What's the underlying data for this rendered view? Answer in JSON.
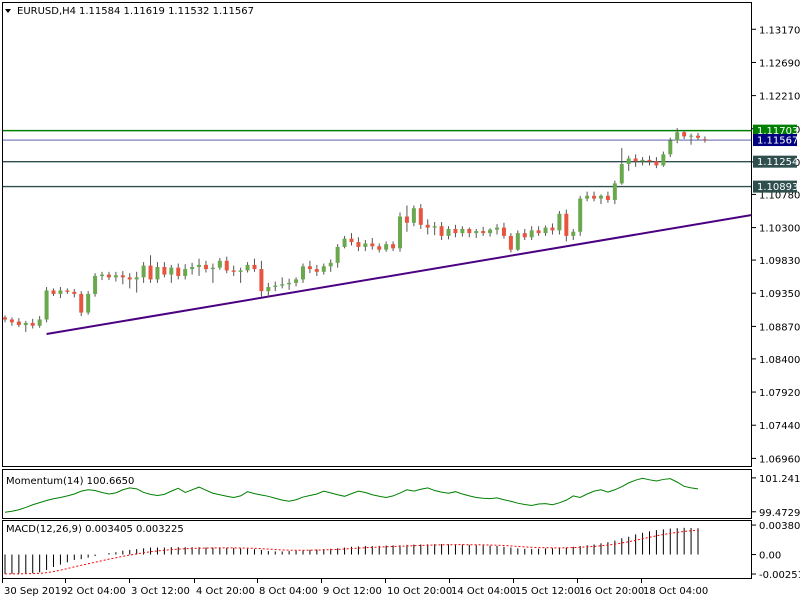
{
  "header": {
    "symbol": "EURUSD,H4",
    "ohlc": "1.11584 1.11619 1.11532 1.11567"
  },
  "chart_data": [
    {
      "type": "candlestick",
      "name": "EURUSD,H4",
      "y_ticks": [
        "1.13170",
        "1.12690",
        "1.12210",
        "1.11730",
        "1.11250",
        "1.10780",
        "1.10300",
        "1.09830",
        "1.09350",
        "1.08870",
        "1.08400",
        "1.07920",
        "1.07440",
        "1.06960"
      ],
      "ylim": [
        1.0685,
        1.1355
      ],
      "x_ticks": [
        "30 Sep 2019",
        "2 Oct 04:00",
        "3 Oct 12:00",
        "4 Oct 20:00",
        "8 Oct 04:00",
        "9 Oct 12:00",
        "10 Oct 20:00",
        "14 Oct 04:00",
        "15 Oct 12:00",
        "16 Oct 20:00",
        "18 Oct 04:00"
      ],
      "candles": [
        [
          1.09,
          1.0903,
          1.0893,
          1.0897
        ],
        [
          1.0897,
          1.09,
          1.0888,
          1.0893
        ],
        [
          1.0894,
          1.0899,
          1.0886,
          1.0889
        ],
        [
          1.0889,
          1.0895,
          1.0879,
          1.0892
        ],
        [
          1.0892,
          1.0898,
          1.0884,
          1.0888
        ],
        [
          1.0888,
          1.0902,
          1.0885,
          1.0897
        ],
        [
          1.0897,
          1.0944,
          1.0893,
          1.0939
        ],
        [
          1.0939,
          1.0942,
          1.0931,
          1.0934
        ],
        [
          1.0934,
          1.0944,
          1.0928,
          1.0939
        ],
        [
          1.0939,
          1.0942,
          1.0934,
          1.0937
        ],
        [
          1.0937,
          1.0941,
          1.0929,
          1.0934
        ],
        [
          1.0934,
          1.0938,
          1.0902,
          1.0907
        ],
        [
          1.0907,
          1.0938,
          1.0904,
          1.0934
        ],
        [
          1.0934,
          1.0964,
          1.093,
          1.096
        ],
        [
          1.096,
          1.0966,
          1.0954,
          1.0962
        ],
        [
          1.0962,
          1.0966,
          1.0954,
          1.0958
        ],
        [
          1.0958,
          1.0966,
          1.0952,
          1.0961
        ],
        [
          1.0961,
          1.0967,
          1.0948,
          1.0958
        ],
        [
          1.0958,
          1.0964,
          1.0942,
          1.0955
        ],
        [
          1.0955,
          1.0966,
          1.0936,
          1.0958
        ],
        [
          1.0958,
          1.098,
          1.095,
          1.0975
        ],
        [
          1.0975,
          1.099,
          1.095,
          1.0955
        ],
        [
          1.0955,
          1.098,
          1.095,
          1.0973
        ],
        [
          1.0973,
          1.098,
          1.0958,
          1.0962
        ],
        [
          1.0962,
          1.0976,
          1.095,
          1.0972
        ],
        [
          1.0972,
          1.0978,
          1.0955,
          1.096
        ],
        [
          1.096,
          1.0977,
          1.0955,
          1.097
        ],
        [
          1.097,
          1.0979,
          1.0962,
          1.0973
        ],
        [
          1.0973,
          1.0985,
          1.096,
          1.0976
        ],
        [
          1.0976,
          1.0982,
          1.0965,
          1.097
        ],
        [
          1.097,
          1.0978,
          1.095,
          1.0972
        ],
        [
          1.0972,
          1.0986,
          1.0969,
          1.0982
        ],
        [
          1.0982,
          1.0988,
          1.0964,
          1.0968
        ],
        [
          1.0968,
          1.0975,
          1.096,
          1.0966
        ],
        [
          1.0966,
          1.0972,
          1.095,
          1.0968
        ],
        [
          1.0968,
          1.098,
          1.0965,
          1.0976
        ],
        [
          1.0976,
          1.0985,
          1.0966,
          1.097
        ],
        [
          1.097,
          1.0982,
          1.093,
          1.0938
        ],
        [
          1.0938,
          1.095,
          1.093,
          1.0944
        ],
        [
          1.0944,
          1.0952,
          1.0938,
          1.0946
        ],
        [
          1.0946,
          1.0958,
          1.0942,
          1.0948
        ],
        [
          1.0948,
          1.0956,
          1.094,
          1.095
        ],
        [
          1.095,
          1.0958,
          1.0945,
          1.0955
        ],
        [
          1.0955,
          1.0978,
          1.095,
          1.0974
        ],
        [
          1.0974,
          1.0982,
          1.0964,
          1.097
        ],
        [
          1.097,
          1.0976,
          1.096,
          1.0966
        ],
        [
          1.0966,
          1.0978,
          1.0962,
          1.0974
        ],
        [
          1.0974,
          1.0984,
          1.0966,
          1.0979
        ],
        [
          1.0979,
          1.1006,
          1.0972,
          1.1002
        ],
        [
          1.1002,
          1.1018,
          1.1,
          1.1014
        ],
        [
          1.1014,
          1.1022,
          1.1004,
          1.1009
        ],
        [
          1.1009,
          1.1016,
          1.0996,
          1.1002
        ],
        [
          1.1002,
          1.1012,
          1.0996,
          1.1007
        ],
        [
          1.1007,
          1.1015,
          1.0998,
          1.1003
        ],
        [
          1.1003,
          1.1007,
          1.0994,
          1.0998
        ],
        [
          1.0998,
          1.101,
          1.0995,
          1.1006
        ],
        [
          1.1006,
          1.101,
          1.0996,
          1.1
        ],
        [
          1.1,
          1.1052,
          1.0995,
          1.1046
        ],
        [
          1.1046,
          1.1062,
          1.1024,
          1.1037
        ],
        [
          1.1037,
          1.1062,
          1.1032,
          1.1058
        ],
        [
          1.1058,
          1.1064,
          1.1028,
          1.1034
        ],
        [
          1.1034,
          1.1042,
          1.102,
          1.103
        ],
        [
          1.103,
          1.1038,
          1.1019,
          1.1032
        ],
        [
          1.1032,
          1.1038,
          1.1012,
          1.1018
        ],
        [
          1.1018,
          1.1032,
          1.1013,
          1.1028
        ],
        [
          1.1028,
          1.1034,
          1.1016,
          1.1022
        ],
        [
          1.1022,
          1.1032,
          1.1017,
          1.1028
        ],
        [
          1.1028,
          1.103,
          1.1016,
          1.1022
        ],
        [
          1.1022,
          1.1028,
          1.1015,
          1.1025
        ],
        [
          1.1025,
          1.1031,
          1.1018,
          1.1022
        ],
        [
          1.1022,
          1.1029,
          1.1017,
          1.1027
        ],
        [
          1.1027,
          1.1035,
          1.102,
          1.103
        ],
        [
          1.103,
          1.1037,
          1.1014,
          1.1018
        ],
        [
          1.1018,
          1.1022,
          1.0994,
          1.0998
        ],
        [
          1.0998,
          1.1026,
          1.0996,
          1.1022
        ],
        [
          1.1022,
          1.1028,
          1.1012,
          1.1016
        ],
        [
          1.1016,
          1.1032,
          1.1012,
          1.1026
        ],
        [
          1.1026,
          1.1032,
          1.1018,
          1.1022
        ],
        [
          1.1022,
          1.1033,
          1.1018,
          1.103
        ],
        [
          1.103,
          1.1036,
          1.102,
          1.1026
        ],
        [
          1.1026,
          1.1054,
          1.102,
          1.105
        ],
        [
          1.105,
          1.1056,
          1.101,
          1.1018
        ],
        [
          1.1018,
          1.1028,
          1.1012,
          1.1024
        ],
        [
          1.1024,
          1.1076,
          1.1018,
          1.1072
        ],
        [
          1.1072,
          1.1082,
          1.1068,
          1.1076
        ],
        [
          1.1076,
          1.1082,
          1.1068,
          1.1072
        ],
        [
          1.1072,
          1.1078,
          1.1064,
          1.1076
        ],
        [
          1.1076,
          1.1082,
          1.1066,
          1.107
        ],
        [
          1.107,
          1.1098,
          1.1064,
          1.1094
        ],
        [
          1.1094,
          1.1145,
          1.1092,
          1.1122
        ],
        [
          1.1122,
          1.1134,
          1.1112,
          1.113
        ],
        [
          1.113,
          1.1136,
          1.1118,
          1.1126
        ],
        [
          1.1126,
          1.1132,
          1.112,
          1.1128
        ],
        [
          1.1128,
          1.1134,
          1.112,
          1.1126
        ],
        [
          1.1126,
          1.1132,
          1.1116,
          1.112
        ],
        [
          1.112,
          1.114,
          1.1118,
          1.1136
        ],
        [
          1.1136,
          1.116,
          1.1132,
          1.1156
        ],
        [
          1.1156,
          1.1174,
          1.1152,
          1.1168
        ],
        [
          1.1168,
          1.1171,
          1.1158,
          1.1162
        ],
        [
          1.1162,
          1.1166,
          1.115,
          1.1163
        ],
        [
          1.1163,
          1.1167,
          1.1156,
          1.116
        ],
        [
          1.1158,
          1.1162,
          1.1153,
          1.1157
        ]
      ],
      "horizontal_levels": [
        {
          "price": 1.11703,
          "label": "1.11703",
          "color": "#008000"
        },
        {
          "price": 1.11567,
          "label": "1.11567",
          "color": "#000080"
        },
        {
          "price": 1.11254,
          "label": "1.11254",
          "color": "#2f4f4f"
        },
        {
          "price": 1.10893,
          "label": "1.10893",
          "color": "#2f4f4f"
        }
      ],
      "trendline": {
        "from": {
          "candle": 6,
          "price": 1.0876
        },
        "to": {
          "candle": 999,
          "price": 1.1048
        },
        "color": "#4b0082"
      },
      "colors": {
        "bull": "#6aa84f",
        "bear": "#e8553e",
        "text": "#000000"
      }
    },
    {
      "type": "line",
      "name": "Momentum(14)",
      "title": "Momentum(14) 100.6650",
      "y_ticks": [
        "101.2417",
        "99.4729"
      ],
      "ylim": [
        99.2,
        101.6
      ],
      "color": "#008000",
      "values": [
        99.45,
        99.5,
        99.58,
        99.7,
        99.84,
        99.95,
        100.06,
        100.15,
        100.22,
        100.3,
        100.4,
        100.55,
        100.62,
        100.58,
        100.48,
        100.4,
        100.46,
        100.62,
        100.72,
        100.67,
        100.48,
        100.38,
        100.32,
        100.38,
        100.55,
        100.7,
        100.48,
        100.62,
        100.76,
        100.6,
        100.44,
        100.36,
        100.28,
        100.22,
        100.3,
        100.52,
        100.42,
        100.35,
        100.28,
        100.18,
        100.08,
        100.02,
        100.1,
        100.24,
        100.32,
        100.4,
        100.55,
        100.46,
        100.36,
        100.28,
        100.42,
        100.55,
        100.48,
        100.36,
        100.28,
        100.22,
        100.3,
        100.45,
        100.62,
        100.55,
        100.65,
        100.72,
        100.58,
        100.5,
        100.44,
        100.52,
        100.4,
        100.3,
        100.22,
        100.18,
        100.16,
        100.2,
        100.1,
        100.02,
        99.92,
        99.85,
        99.8,
        99.88,
        99.9,
        99.84,
        99.94,
        100.08,
        100.3,
        100.22,
        100.4,
        100.55,
        100.62,
        100.5,
        100.62,
        100.78,
        100.98,
        101.12,
        101.22,
        101.14,
        101.08,
        101.16,
        101.2,
        101.02,
        100.8,
        100.72,
        100.67
      ]
    },
    {
      "type": "histogram+line",
      "name": "MACD(12,26,9)",
      "title": "MACD(12,26,9) 0.003405 0.003225",
      "y_ticks": [
        "0.003805",
        "0.00",
        "-0.002516"
      ],
      "ylim": [
        -0.0029,
        0.0042
      ],
      "hist_color": "#000000",
      "signal_color": "#ff0000",
      "macd": [
        -0.0025,
        -0.0025,
        -0.00245,
        -0.0024,
        -0.0024,
        -0.0023,
        -0.002,
        -0.0016,
        -0.0013,
        -0.001,
        -0.0007,
        -0.0006,
        -0.0004,
        -0.0002,
        0.0,
        0.0002,
        0.0003,
        0.0005,
        0.0006,
        0.0007,
        0.0008,
        0.0009,
        0.0009,
        0.0009,
        0.00095,
        0.00095,
        0.00095,
        0.00095,
        0.00095,
        0.0009,
        0.0009,
        0.0009,
        0.00085,
        0.00085,
        0.0008,
        0.00075,
        0.0007,
        0.0006,
        0.00045,
        0.0004,
        0.0004,
        0.00045,
        0.0005,
        0.00055,
        0.0006,
        0.00065,
        0.0007,
        0.00075,
        0.0008,
        0.0009,
        0.001,
        0.00105,
        0.0011,
        0.0011,
        0.00112,
        0.00115,
        0.00118,
        0.0012,
        0.00125,
        0.00128,
        0.0013,
        0.00132,
        0.00134,
        0.00134,
        0.00132,
        0.0013,
        0.00128,
        0.00125,
        0.00122,
        0.0012,
        0.00115,
        0.0011,
        0.001,
        0.0009,
        0.0008,
        0.00075,
        0.00072,
        0.00075,
        0.0008,
        0.00082,
        0.00085,
        0.0009,
        0.001,
        0.0011,
        0.0012,
        0.0013,
        0.00145,
        0.0016,
        0.0018,
        0.0021,
        0.0023,
        0.0026,
        0.0028,
        0.003,
        0.00315,
        0.00325,
        0.00335,
        0.0034,
        0.00345,
        0.00342,
        0.0034
      ]
    }
  ]
}
